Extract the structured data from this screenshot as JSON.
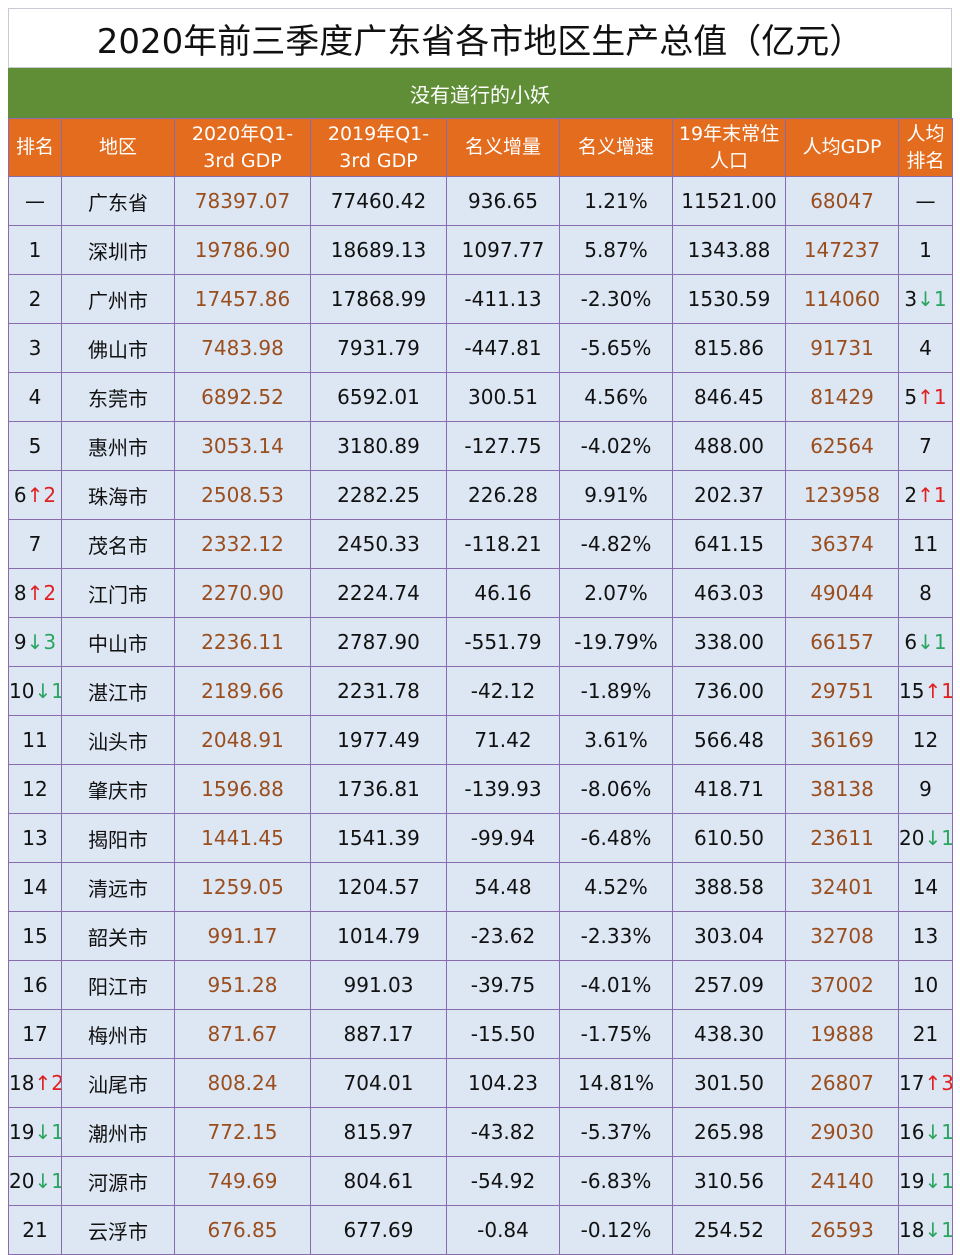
{
  "title": "2020年前三季度广东省各市地区生产总值（亿元）",
  "subtitle": "没有道行的小妖",
  "colors": {
    "header_bg": "#e46c1e",
    "subtitle_bg": "#5f8e37",
    "cell_bg": "#dde7f3",
    "highlight_text": "#9a4d1d",
    "rank_up": "#e02020",
    "rank_down": "#2aa560"
  },
  "columns": [
    {
      "label": "排名",
      "line2": ""
    },
    {
      "label": "地区",
      "line2": ""
    },
    {
      "label": "2020年Q1-",
      "line2": "3rd GDP"
    },
    {
      "label": "2019年Q1-",
      "line2": "3rd GDP"
    },
    {
      "label": "名义增量",
      "line2": ""
    },
    {
      "label": "名义增速",
      "line2": ""
    },
    {
      "label": "19年末常住",
      "line2": "人口"
    },
    {
      "label": "人均GDP",
      "line2": ""
    },
    {
      "label": "人均",
      "line2": "排名"
    }
  ],
  "rows": [
    {
      "rank": "—",
      "rank_change": "",
      "rank_dir": "",
      "region": "广东省",
      "gdp2020": "78397.07",
      "gdp2019": "77460.42",
      "increase": "936.65",
      "growth": "1.21%",
      "population": "11521.00",
      "per_capita": "68047",
      "pc_rank": "—",
      "pc_change": "",
      "pc_dir": ""
    },
    {
      "rank": "1",
      "rank_change": "",
      "rank_dir": "",
      "region": "深圳市",
      "gdp2020": "19786.90",
      "gdp2019": "18689.13",
      "increase": "1097.77",
      "growth": "5.87%",
      "population": "1343.88",
      "per_capita": "147237",
      "pc_rank": "1",
      "pc_change": "",
      "pc_dir": ""
    },
    {
      "rank": "2",
      "rank_change": "",
      "rank_dir": "",
      "region": "广州市",
      "gdp2020": "17457.86",
      "gdp2019": "17868.99",
      "increase": "-411.13",
      "growth": "-2.30%",
      "population": "1530.59",
      "per_capita": "114060",
      "pc_rank": "3",
      "pc_change": "↓1",
      "pc_dir": "down"
    },
    {
      "rank": "3",
      "rank_change": "",
      "rank_dir": "",
      "region": "佛山市",
      "gdp2020": "7483.98",
      "gdp2019": "7931.79",
      "increase": "-447.81",
      "growth": "-5.65%",
      "population": "815.86",
      "per_capita": "91731",
      "pc_rank": "4",
      "pc_change": "",
      "pc_dir": ""
    },
    {
      "rank": "4",
      "rank_change": "",
      "rank_dir": "",
      "region": "东莞市",
      "gdp2020": "6892.52",
      "gdp2019": "6592.01",
      "increase": "300.51",
      "growth": "4.56%",
      "population": "846.45",
      "per_capita": "81429",
      "pc_rank": "5",
      "pc_change": "↑1",
      "pc_dir": "up"
    },
    {
      "rank": "5",
      "rank_change": "",
      "rank_dir": "",
      "region": "惠州市",
      "gdp2020": "3053.14",
      "gdp2019": "3180.89",
      "increase": "-127.75",
      "growth": "-4.02%",
      "population": "488.00",
      "per_capita": "62564",
      "pc_rank": "7",
      "pc_change": "",
      "pc_dir": ""
    },
    {
      "rank": "6",
      "rank_change": "↑2",
      "rank_dir": "up",
      "region": "珠海市",
      "gdp2020": "2508.53",
      "gdp2019": "2282.25",
      "increase": "226.28",
      "growth": "9.91%",
      "population": "202.37",
      "per_capita": "123958",
      "pc_rank": "2",
      "pc_change": "↑1",
      "pc_dir": "up"
    },
    {
      "rank": "7",
      "rank_change": "",
      "rank_dir": "",
      "region": "茂名市",
      "gdp2020": "2332.12",
      "gdp2019": "2450.33",
      "increase": "-118.21",
      "growth": "-4.82%",
      "population": "641.15",
      "per_capita": "36374",
      "pc_rank": "11",
      "pc_change": "",
      "pc_dir": ""
    },
    {
      "rank": "8",
      "rank_change": "↑2",
      "rank_dir": "up",
      "region": "江门市",
      "gdp2020": "2270.90",
      "gdp2019": "2224.74",
      "increase": "46.16",
      "growth": "2.07%",
      "population": "463.03",
      "per_capita": "49044",
      "pc_rank": "8",
      "pc_change": "",
      "pc_dir": ""
    },
    {
      "rank": "9",
      "rank_change": "↓3",
      "rank_dir": "down",
      "region": "中山市",
      "gdp2020": "2236.11",
      "gdp2019": "2787.90",
      "increase": "-551.79",
      "growth": "-19.79%",
      "population": "338.00",
      "per_capita": "66157",
      "pc_rank": "6",
      "pc_change": "↓1",
      "pc_dir": "down"
    },
    {
      "rank": "10",
      "rank_change": "↓1",
      "rank_dir": "down",
      "region": "湛江市",
      "gdp2020": "2189.66",
      "gdp2019": "2231.78",
      "increase": "-42.12",
      "growth": "-1.89%",
      "population": "736.00",
      "per_capita": "29751",
      "pc_rank": "15",
      "pc_change": "↑1",
      "pc_dir": "up"
    },
    {
      "rank": "11",
      "rank_change": "",
      "rank_dir": "",
      "region": "汕头市",
      "gdp2020": "2048.91",
      "gdp2019": "1977.49",
      "increase": "71.42",
      "growth": "3.61%",
      "population": "566.48",
      "per_capita": "36169",
      "pc_rank": "12",
      "pc_change": "",
      "pc_dir": ""
    },
    {
      "rank": "12",
      "rank_change": "",
      "rank_dir": "",
      "region": "肇庆市",
      "gdp2020": "1596.88",
      "gdp2019": "1736.81",
      "increase": "-139.93",
      "growth": "-8.06%",
      "population": "418.71",
      "per_capita": "38138",
      "pc_rank": "9",
      "pc_change": "",
      "pc_dir": ""
    },
    {
      "rank": "13",
      "rank_change": "",
      "rank_dir": "",
      "region": "揭阳市",
      "gdp2020": "1441.45",
      "gdp2019": "1541.39",
      "increase": "-99.94",
      "growth": "-6.48%",
      "population": "610.50",
      "per_capita": "23611",
      "pc_rank": "20",
      "pc_change": "↓1",
      "pc_dir": "down"
    },
    {
      "rank": "14",
      "rank_change": "",
      "rank_dir": "",
      "region": "清远市",
      "gdp2020": "1259.05",
      "gdp2019": "1204.57",
      "increase": "54.48",
      "growth": "4.52%",
      "population": "388.58",
      "per_capita": "32401",
      "pc_rank": "14",
      "pc_change": "",
      "pc_dir": ""
    },
    {
      "rank": "15",
      "rank_change": "",
      "rank_dir": "",
      "region": "韶关市",
      "gdp2020": "991.17",
      "gdp2019": "1014.79",
      "increase": "-23.62",
      "growth": "-2.33%",
      "population": "303.04",
      "per_capita": "32708",
      "pc_rank": "13",
      "pc_change": "",
      "pc_dir": ""
    },
    {
      "rank": "16",
      "rank_change": "",
      "rank_dir": "",
      "region": "阳江市",
      "gdp2020": "951.28",
      "gdp2019": "991.03",
      "increase": "-39.75",
      "growth": "-4.01%",
      "population": "257.09",
      "per_capita": "37002",
      "pc_rank": "10",
      "pc_change": "",
      "pc_dir": ""
    },
    {
      "rank": "17",
      "rank_change": "",
      "rank_dir": "",
      "region": "梅州市",
      "gdp2020": "871.67",
      "gdp2019": "887.17",
      "increase": "-15.50",
      "growth": "-1.75%",
      "population": "438.30",
      "per_capita": "19888",
      "pc_rank": "21",
      "pc_change": "",
      "pc_dir": ""
    },
    {
      "rank": "18",
      "rank_change": "↑2",
      "rank_dir": "up",
      "region": "汕尾市",
      "gdp2020": "808.24",
      "gdp2019": "704.01",
      "increase": "104.23",
      "growth": "14.81%",
      "population": "301.50",
      "per_capita": "26807",
      "pc_rank": "17",
      "pc_change": "↑3",
      "pc_dir": "up"
    },
    {
      "rank": "19",
      "rank_change": "↓1",
      "rank_dir": "down",
      "region": "潮州市",
      "gdp2020": "772.15",
      "gdp2019": "815.97",
      "increase": "-43.82",
      "growth": "-5.37%",
      "population": "265.98",
      "per_capita": "29030",
      "pc_rank": "16",
      "pc_change": "↓1",
      "pc_dir": "down"
    },
    {
      "rank": "20",
      "rank_change": "↓1",
      "rank_dir": "down",
      "region": "河源市",
      "gdp2020": "749.69",
      "gdp2019": "804.61",
      "increase": "-54.92",
      "growth": "-6.83%",
      "population": "310.56",
      "per_capita": "24140",
      "pc_rank": "19",
      "pc_change": "↓1",
      "pc_dir": "down"
    },
    {
      "rank": "21",
      "rank_change": "",
      "rank_dir": "",
      "region": "云浮市",
      "gdp2020": "676.85",
      "gdp2019": "677.69",
      "increase": "-0.84",
      "growth": "-0.12%",
      "population": "254.52",
      "per_capita": "26593",
      "pc_rank": "18",
      "pc_change": "↓1",
      "pc_dir": "down"
    }
  ]
}
